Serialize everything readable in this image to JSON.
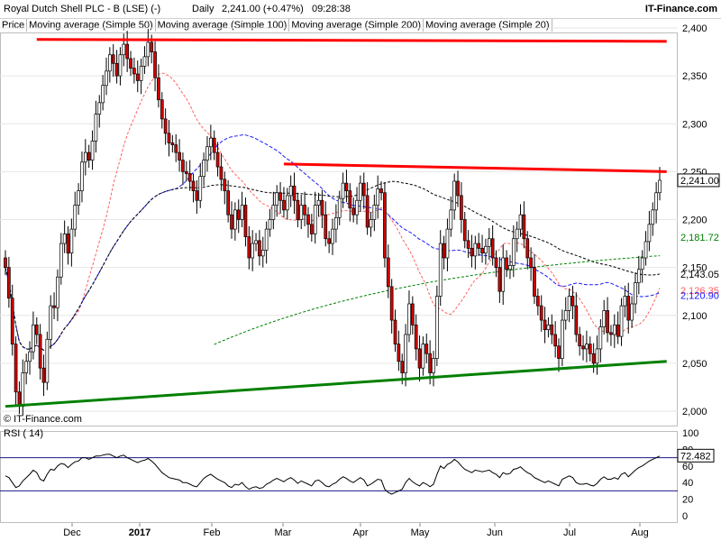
{
  "header": {
    "instrument": "Royal Dutch Shell PLC - B (LSE) (-)",
    "period": "Daily",
    "quote": "2,241.00 (+0.47%)",
    "time": "09:28:38",
    "brand": "IT-Finance.com"
  },
  "legend": [
    {
      "label": "Price",
      "color": "#000000"
    },
    {
      "label": "Moving average (Simple 50)",
      "color": "#1a1aff"
    },
    {
      "label": "Moving average (Simple 100)",
      "color": "#000000"
    },
    {
      "label": "Moving average (Simple 200)",
      "color": "#008000"
    },
    {
      "label": "Moving average (Simple 20)",
      "color": "#ff6060"
    }
  ],
  "watermark": "© IT-Finance.com",
  "rsi_label": "RSI ( 14)",
  "colors": {
    "up_candle": "#ffffff",
    "down_candle": "#d40000",
    "sma50": "#1a1aff",
    "sma100": "#000000",
    "sma200": "#008000",
    "sma20": "#ff6060",
    "resistance": "#ff0000",
    "support": "#008000"
  },
  "chart_data": {
    "type": "candlestick",
    "price_axis": {
      "ticks": [
        "2,400",
        "2,350",
        "2,300",
        "2,250",
        "2,200",
        "2,150",
        "2,100",
        "2,050",
        "2,000"
      ],
      "ylim": [
        2000,
        2400
      ]
    },
    "x_labels": [
      {
        "label": "Dec",
        "bold": false
      },
      {
        "label": "2017",
        "bold": true
      },
      {
        "label": "Feb",
        "bold": false
      },
      {
        "label": "Mar",
        "bold": false
      },
      {
        "label": "Apr",
        "bold": false
      },
      {
        "label": "May",
        "bold": false
      },
      {
        "label": "Jun",
        "bold": false
      },
      {
        "label": "Jul",
        "bold": false
      },
      {
        "label": "Aug",
        "bold": false
      }
    ],
    "candle_closes": [
      2150,
      2118,
      2070,
      2020,
      2005,
      2040,
      2052,
      2062,
      2090,
      2080,
      2045,
      2030,
      2075,
      2110,
      2108,
      2140,
      2175,
      2185,
      2165,
      2190,
      2215,
      2230,
      2260,
      2270,
      2262,
      2282,
      2310,
      2322,
      2340,
      2355,
      2372,
      2363,
      2350,
      2372,
      2383,
      2368,
      2358,
      2352,
      2345,
      2360,
      2370,
      2385,
      2375,
      2348,
      2325,
      2305,
      2290,
      2280,
      2278,
      2270,
      2262,
      2250,
      2248,
      2240,
      2230,
      2220,
      2245,
      2262,
      2276,
      2285,
      2270,
      2255,
      2242,
      2230,
      2205,
      2190,
      2210,
      2200,
      2215,
      2182,
      2160,
      2175,
      2178,
      2162,
      2168,
      2190,
      2200,
      2215,
      2228,
      2220,
      2210,
      2225,
      2235,
      2220,
      2200,
      2215,
      2205,
      2195,
      2185,
      2215,
      2220,
      2205,
      2180,
      2175,
      2190,
      2202,
      2222,
      2238,
      2230,
      2212,
      2205,
      2220,
      2238,
      2225,
      2192,
      2200,
      2215,
      2232,
      2228,
      2160,
      2130,
      2095,
      2070,
      2052,
      2040,
      2080,
      2112,
      2090,
      2065,
      2045,
      2070,
      2060,
      2040,
      2055,
      2120,
      2175,
      2160,
      2190,
      2210,
      2240,
      2225,
      2200,
      2178,
      2170,
      2162,
      2175,
      2170,
      2165,
      2172,
      2180,
      2160,
      2150,
      2125,
      2160,
      2148,
      2152,
      2180,
      2190,
      2205,
      2180,
      2160,
      2150,
      2120,
      2110,
      2095,
      2085,
      2090,
      2080,
      2068,
      2055,
      2095,
      2105,
      2120,
      2110,
      2080,
      2068,
      2065,
      2070,
      2060,
      2050,
      2065,
      2088,
      2105,
      2082,
      2080,
      2090,
      2078,
      2110,
      2120,
      2095,
      2112,
      2134,
      2148,
      2160,
      2177,
      2195,
      2210,
      2228,
      2241
    ],
    "candle_opens": [
      2160,
      2150,
      2118,
      2070,
      2020,
      2005,
      2040,
      2052,
      2062,
      2090,
      2080,
      2045,
      2030,
      2075,
      2110,
      2108,
      2140,
      2175,
      2185,
      2165,
      2190,
      2215,
      2230,
      2260,
      2270,
      2262,
      2282,
      2310,
      2322,
      2340,
      2355,
      2372,
      2363,
      2350,
      2372,
      2383,
      2368,
      2358,
      2352,
      2345,
      2360,
      2370,
      2385,
      2375,
      2348,
      2325,
      2305,
      2290,
      2280,
      2278,
      2270,
      2262,
      2250,
      2248,
      2240,
      2230,
      2220,
      2245,
      2262,
      2276,
      2285,
      2270,
      2255,
      2242,
      2230,
      2205,
      2190,
      2210,
      2200,
      2215,
      2182,
      2160,
      2175,
      2178,
      2162,
      2168,
      2190,
      2200,
      2215,
      2228,
      2220,
      2210,
      2225,
      2235,
      2220,
      2200,
      2215,
      2205,
      2195,
      2185,
      2215,
      2220,
      2205,
      2180,
      2175,
      2190,
      2202,
      2222,
      2238,
      2230,
      2212,
      2205,
      2220,
      2238,
      2225,
      2192,
      2200,
      2215,
      2232,
      2228,
      2160,
      2130,
      2095,
      2070,
      2052,
      2040,
      2080,
      2112,
      2090,
      2065,
      2045,
      2070,
      2060,
      2040,
      2055,
      2120,
      2175,
      2160,
      2190,
      2210,
      2240,
      2225,
      2200,
      2178,
      2170,
      2162,
      2175,
      2170,
      2165,
      2172,
      2180,
      2160,
      2150,
      2125,
      2160,
      2148,
      2152,
      2180,
      2190,
      2205,
      2180,
      2160,
      2150,
      2120,
      2110,
      2095,
      2085,
      2090,
      2080,
      2068,
      2055,
      2095,
      2105,
      2120,
      2110,
      2080,
      2068,
      2065,
      2070,
      2060,
      2050,
      2065,
      2088,
      2105,
      2082,
      2080,
      2090,
      2078,
      2110,
      2120,
      2095,
      2112,
      2134,
      2148,
      2160,
      2177,
      2195,
      2210,
      2228
    ],
    "value_labels": [
      {
        "text": "2,241.00",
        "value": 2241,
        "boxed": true
      },
      {
        "text": "2,181.72",
        "value": 2181.72,
        "color": "#008000"
      },
      {
        "text": "2,143.05",
        "value": 2143.05,
        "color": "#000000"
      },
      {
        "text": "2,126.35",
        "value": 2126.35,
        "color": "#ff6060"
      },
      {
        "text": "2,120.90",
        "value": 2120.9,
        "color": "#1a1aff"
      }
    ],
    "trendlines": [
      {
        "name": "top",
        "from": [
          9,
          2388
        ],
        "to": [
          190,
          2386
        ],
        "color": "#ff0000"
      },
      {
        "name": "resistance",
        "from": [
          80,
          2258
        ],
        "to": [
          190,
          2250
        ],
        "color": "#ff0000"
      },
      {
        "name": "support",
        "from": [
          0,
          2005
        ],
        "to": [
          190,
          2052
        ],
        "color": "#008000"
      }
    ],
    "rsi": {
      "axis_ticks": [
        "100",
        "80",
        "60",
        "40",
        "20",
        "0"
      ],
      "ylim": [
        0,
        100
      ],
      "levels": [
        70,
        30
      ],
      "last_value": "72.482",
      "values": [
        48,
        46,
        40,
        34,
        36,
        42,
        46,
        50,
        55,
        52,
        44,
        42,
        50,
        56,
        55,
        60,
        63,
        62,
        58,
        62,
        65,
        66,
        70,
        70,
        68,
        70,
        72,
        72,
        73,
        74,
        74,
        72,
        70,
        72,
        73,
        70,
        68,
        66,
        64,
        66,
        67,
        69,
        66,
        62,
        57,
        52,
        49,
        46,
        45,
        44,
        43,
        40,
        40,
        38,
        36,
        35,
        40,
        45,
        48,
        50,
        47,
        44,
        42,
        40,
        36,
        34,
        38,
        37,
        40,
        35,
        32,
        34,
        35,
        33,
        34,
        38,
        40,
        43,
        45,
        43,
        41,
        44,
        46,
        43,
        39,
        42,
        40,
        38,
        36,
        42,
        43,
        40,
        36,
        35,
        38,
        40,
        44,
        47,
        45,
        42,
        40,
        43,
        46,
        43,
        36,
        38,
        41,
        44,
        43,
        32,
        28,
        26,
        28,
        30,
        32,
        40,
        45,
        41,
        38,
        36,
        40,
        38,
        35,
        38,
        50,
        60,
        57,
        62,
        64,
        68,
        65,
        60,
        56,
        54,
        52,
        55,
        54,
        53,
        54,
        55,
        52,
        50,
        46,
        52,
        50,
        51,
        56,
        57,
        59,
        55,
        52,
        50,
        46,
        44,
        42,
        40,
        42,
        40,
        38,
        36,
        44,
        46,
        48,
        46,
        40,
        38,
        38,
        39,
        37,
        36,
        39,
        44,
        47,
        44,
        44,
        46,
        44,
        50,
        52,
        47,
        51,
        55,
        58,
        60,
        63,
        66,
        68,
        70,
        72
      ]
    }
  }
}
